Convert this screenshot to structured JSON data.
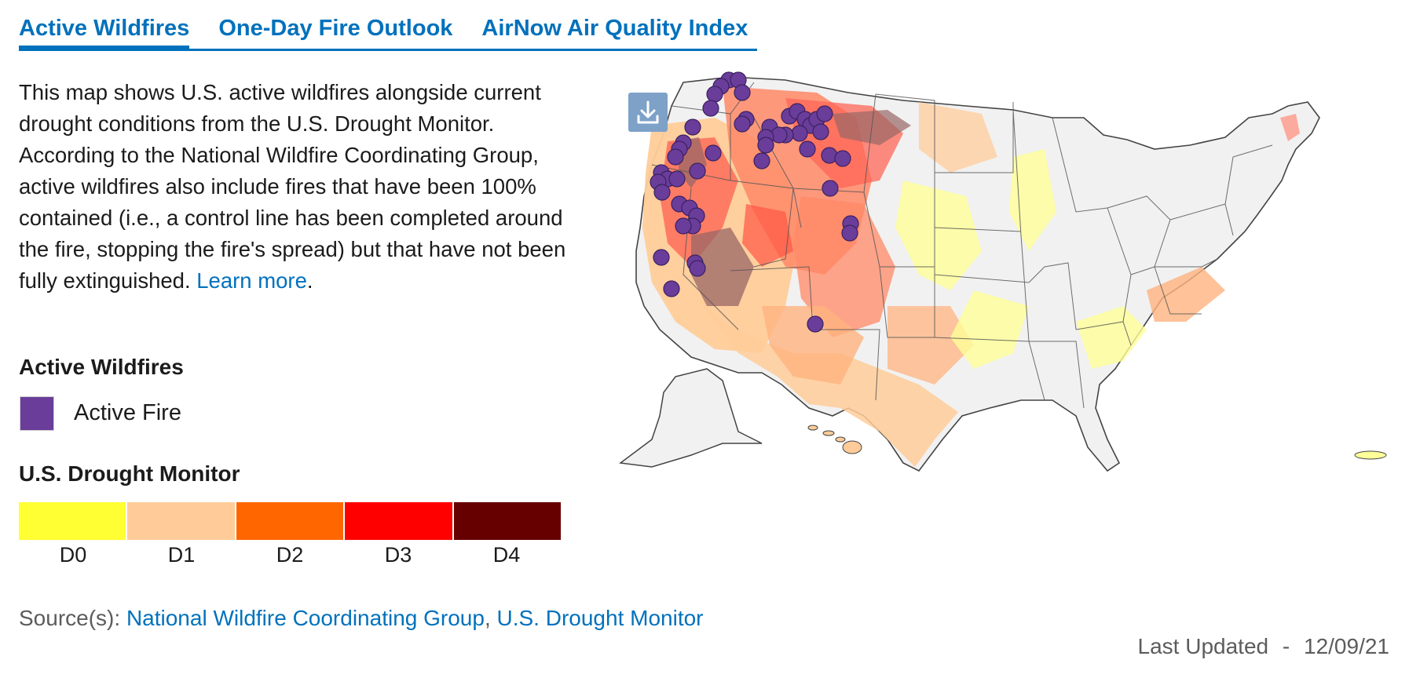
{
  "tabs": [
    {
      "label": "Active Wildfires",
      "active": true
    },
    {
      "label": "One-Day Fire Outlook",
      "active": false
    },
    {
      "label": "AirNow Air Quality Index",
      "active": false
    }
  ],
  "description": {
    "text": "This map shows U.S. active wildfires alongside current drought conditions from the U.S. Drought Monitor. According to the National Wildfire Coordinating Group, active wildfires also include fires that have been 100% contained (i.e., a control line has been completed around the fire, stopping the fire's spread) but that have not been fully extinguished.",
    "learn_more": "Learn more",
    "period": "."
  },
  "wildfire_legend": {
    "title": "Active Wildfires",
    "item_label": "Active Fire",
    "color": "#6a3d9a"
  },
  "drought_legend": {
    "title": "U.S. Drought Monitor",
    "levels": [
      {
        "label": "D0",
        "color": "#ffff33"
      },
      {
        "label": "D1",
        "color": "#ffcc99"
      },
      {
        "label": "D2",
        "color": "#ff6600"
      },
      {
        "label": "D3",
        "color": "#ff0000"
      },
      {
        "label": "D4",
        "color": "#660000"
      }
    ]
  },
  "sources": {
    "prefix": "Source(s): ",
    "link1": "National Wildfire Coordinating Group",
    "separator": ", ",
    "link2": "U.S. Drought Monitor"
  },
  "last_updated": {
    "label": "Last Updated",
    "separator": "-",
    "date": "12/09/21"
  },
  "map": {
    "download_icon": "download-icon",
    "fire_count_visible": 62
  }
}
